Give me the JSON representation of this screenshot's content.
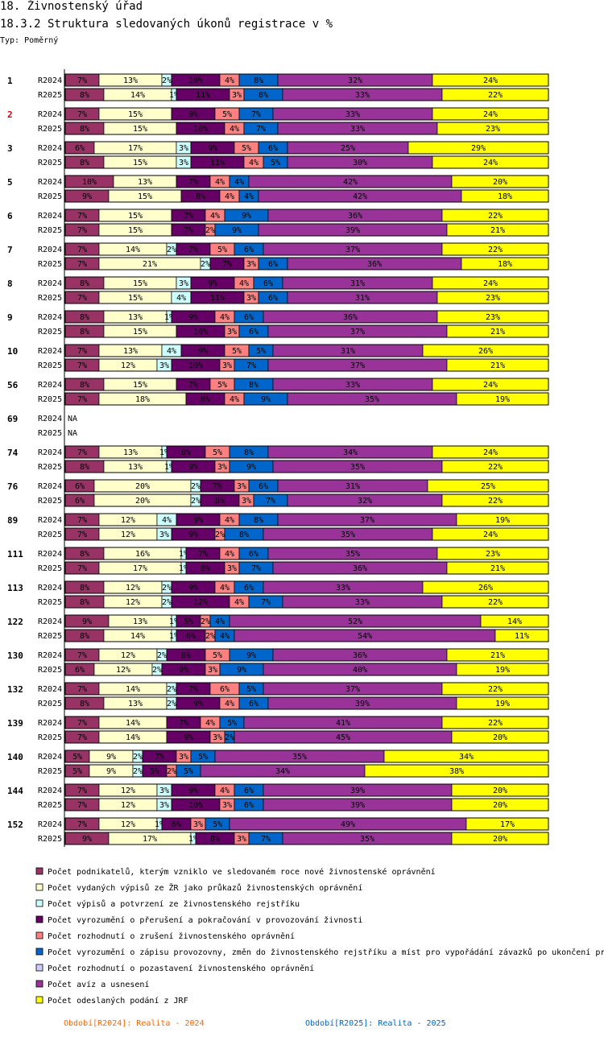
{
  "header": {
    "title": "18. Živnostenský úřad",
    "subtitle": "18.3.2 Struktura sledovaných úkonů registrace v %",
    "type_label": "Typ: Poměrný"
  },
  "chart_data": {
    "type": "bar",
    "orientation": "horizontal-stacked-percent",
    "title": "18.3.2 Struktura sledovaných úkonů registrace v %",
    "legend_position": "bottom",
    "colors": [
      "#993366",
      "#ffffcc",
      "#ccffff",
      "#660066",
      "#ff8080",
      "#0066cc",
      "#ccccff",
      "#993399",
      "#ffff00"
    ],
    "series": [
      {
        "name": "Počet podnikatelů, kterým vzniklo ve sledovaném roce nové živnostenské oprávnění"
      },
      {
        "name": "Počet vydaných výpisů ze ŽR jako průkazů živnostenských oprávnění"
      },
      {
        "name": "Počet výpisů a potvrzení ze živnostenského rejstříku"
      },
      {
        "name": "Počet vyrozumění o přerušení a pokračování v provozování živnosti"
      },
      {
        "name": "Počet rozhodnutí o zrušení živnostenského oprávnění"
      },
      {
        "name": "Počet vyrozumění o zápisu provozovny, změn do živnostenského rejstříku a míst pro vypořádání závazků po ukončení pr"
      },
      {
        "name": "Počet rozhodnutí o pozastavení živnostenského oprávnění"
      },
      {
        "name": "Počet avíz a usnesení"
      },
      {
        "name": "Počet odeslaných podání z JRF"
      }
    ],
    "groups": [
      {
        "label": "1",
        "highlight": false,
        "rows": [
          {
            "period": "R2024",
            "values": [
              7,
              13,
              2,
              10,
              4,
              8,
              0,
              32,
              24
            ]
          },
          {
            "period": "R2025",
            "values": [
              8,
              14,
              1,
              11,
              3,
              8,
              0,
              33,
              22
            ]
          }
        ]
      },
      {
        "label": "2",
        "highlight": true,
        "rows": [
          {
            "period": "R2024",
            "values": [
              7,
              15,
              0,
              9,
              5,
              7,
              0,
              33,
              24
            ]
          },
          {
            "period": "R2025",
            "values": [
              8,
              15,
              0,
              10,
              4,
              7,
              0,
              33,
              23
            ]
          }
        ]
      },
      {
        "label": "3",
        "highlight": false,
        "rows": [
          {
            "period": "R2024",
            "values": [
              6,
              17,
              3,
              9,
              5,
              6,
              0,
              25,
              29
            ]
          },
          {
            "period": "R2025",
            "values": [
              8,
              15,
              3,
              11,
              4,
              5,
              0,
              30,
              24
            ]
          }
        ]
      },
      {
        "label": "5",
        "highlight": false,
        "rows": [
          {
            "period": "R2024",
            "values": [
              10,
              13,
              0,
              7,
              4,
              4,
              0,
              42,
              20
            ]
          },
          {
            "period": "R2025",
            "values": [
              9,
              15,
              0,
              8,
              4,
              4,
              0,
              42,
              18
            ]
          }
        ]
      },
      {
        "label": "6",
        "highlight": false,
        "rows": [
          {
            "period": "R2024",
            "values": [
              7,
              15,
              0,
              7,
              4,
              9,
              0,
              36,
              22
            ]
          },
          {
            "period": "R2025",
            "values": [
              7,
              15,
              0,
              7,
              2,
              9,
              0,
              39,
              21
            ]
          }
        ]
      },
      {
        "label": "7",
        "highlight": false,
        "rows": [
          {
            "period": "R2024",
            "values": [
              7,
              14,
              2,
              7,
              5,
              6,
              0,
              37,
              22
            ]
          },
          {
            "period": "R2025",
            "values": [
              7,
              21,
              2,
              7,
              3,
              6,
              0,
              36,
              18
            ]
          }
        ]
      },
      {
        "label": "8",
        "highlight": false,
        "rows": [
          {
            "period": "R2024",
            "values": [
              8,
              15,
              3,
              9,
              4,
              6,
              0,
              31,
              24
            ]
          },
          {
            "period": "R2025",
            "values": [
              7,
              15,
              4,
              11,
              3,
              6,
              0,
              31,
              23
            ]
          }
        ]
      },
      {
        "label": "9",
        "highlight": false,
        "rows": [
          {
            "period": "R2024",
            "values": [
              8,
              13,
              1,
              9,
              4,
              6,
              0,
              36,
              23
            ]
          },
          {
            "period": "R2025",
            "values": [
              8,
              15,
              0,
              10,
              3,
              6,
              0,
              37,
              21
            ]
          }
        ]
      },
      {
        "label": "10",
        "highlight": false,
        "rows": [
          {
            "period": "R2024",
            "values": [
              7,
              13,
              4,
              9,
              5,
              5,
              0,
              31,
              26
            ]
          },
          {
            "period": "R2025",
            "values": [
              7,
              12,
              3,
              10,
              3,
              7,
              0,
              37,
              21
            ]
          }
        ]
      },
      {
        "label": "56",
        "highlight": false,
        "rows": [
          {
            "period": "R2024",
            "values": [
              8,
              15,
              0,
              7,
              5,
              8,
              0,
              33,
              24
            ]
          },
          {
            "period": "R2025",
            "values": [
              7,
              18,
              0,
              8,
              4,
              9,
              0,
              35,
              19
            ]
          }
        ]
      },
      {
        "label": "69",
        "highlight": false,
        "rows": [
          {
            "period": "R2024",
            "values": null,
            "na_text": "NA"
          },
          {
            "period": "R2025",
            "values": null,
            "na_text": "NA"
          }
        ]
      },
      {
        "label": "74",
        "highlight": false,
        "rows": [
          {
            "period": "R2024",
            "values": [
              7,
              13,
              1,
              8,
              5,
              8,
              0,
              34,
              24
            ]
          },
          {
            "period": "R2025",
            "values": [
              8,
              13,
              1,
              9,
              3,
              9,
              0,
              35,
              22
            ]
          }
        ]
      },
      {
        "label": "76",
        "highlight": false,
        "rows": [
          {
            "period": "R2024",
            "values": [
              6,
              20,
              2,
              7,
              3,
              6,
              0,
              31,
              25
            ]
          },
          {
            "period": "R2025",
            "values": [
              6,
              20,
              2,
              8,
              3,
              7,
              0,
              32,
              22
            ]
          }
        ]
      },
      {
        "label": "89",
        "highlight": false,
        "rows": [
          {
            "period": "R2024",
            "values": [
              7,
              12,
              4,
              9,
              4,
              8,
              0,
              37,
              19
            ]
          },
          {
            "period": "R2025",
            "values": [
              7,
              12,
              3,
              9,
              2,
              8,
              0,
              35,
              24
            ]
          }
        ]
      },
      {
        "label": "111",
        "highlight": false,
        "rows": [
          {
            "period": "R2024",
            "values": [
              8,
              16,
              1,
              7,
              4,
              6,
              0,
              35,
              23
            ]
          },
          {
            "period": "R2025",
            "values": [
              7,
              17,
              1,
              8,
              3,
              7,
              0,
              36,
              21
            ]
          }
        ]
      },
      {
        "label": "113",
        "highlight": false,
        "rows": [
          {
            "period": "R2024",
            "values": [
              8,
              12,
              2,
              9,
              4,
              6,
              0,
              33,
              26
            ]
          },
          {
            "period": "R2025",
            "values": [
              8,
              12,
              2,
              12,
              4,
              7,
              0,
              33,
              22
            ]
          }
        ]
      },
      {
        "label": "122",
        "highlight": false,
        "rows": [
          {
            "period": "R2024",
            "values": [
              9,
              13,
              1,
              5,
              2,
              4,
              0,
              52,
              14
            ]
          },
          {
            "period": "R2025",
            "values": [
              8,
              14,
              1,
              6,
              2,
              4,
              0,
              54,
              11
            ]
          }
        ]
      },
      {
        "label": "130",
        "highlight": false,
        "rows": [
          {
            "period": "R2024",
            "values": [
              7,
              12,
              2,
              8,
              5,
              9,
              0,
              36,
              21
            ]
          },
          {
            "period": "R2025",
            "values": [
              6,
              12,
              2,
              9,
              3,
              9,
              0,
              40,
              19
            ]
          }
        ]
      },
      {
        "label": "132",
        "highlight": false,
        "rows": [
          {
            "period": "R2024",
            "values": [
              7,
              14,
              2,
              7,
              6,
              5,
              0,
              37,
              22
            ]
          },
          {
            "period": "R2025",
            "values": [
              8,
              13,
              2,
              9,
              4,
              6,
              0,
              39,
              19
            ]
          }
        ]
      },
      {
        "label": "139",
        "highlight": false,
        "rows": [
          {
            "period": "R2024",
            "values": [
              7,
              14,
              0,
              7,
              4,
              5,
              0,
              41,
              22
            ]
          },
          {
            "period": "R2025",
            "values": [
              7,
              14,
              0,
              9,
              3,
              2,
              0,
              45,
              20
            ]
          }
        ]
      },
      {
        "label": "140",
        "highlight": false,
        "rows": [
          {
            "period": "R2024",
            "values": [
              5,
              9,
              2,
              7,
              3,
              5,
              0,
              35,
              34
            ]
          },
          {
            "period": "R2025",
            "values": [
              5,
              9,
              2,
              5,
              2,
              5,
              0,
              34,
              38
            ]
          }
        ]
      },
      {
        "label": "144",
        "highlight": false,
        "rows": [
          {
            "period": "R2024",
            "values": [
              7,
              12,
              3,
              9,
              4,
              6,
              0,
              39,
              20
            ]
          },
          {
            "period": "R2025",
            "values": [
              7,
              12,
              3,
              10,
              3,
              6,
              0,
              39,
              20
            ]
          }
        ]
      },
      {
        "label": "152",
        "highlight": false,
        "rows": [
          {
            "period": "R2024",
            "values": [
              7,
              12,
              1,
              6,
              3,
              5,
              0,
              49,
              17
            ]
          },
          {
            "period": "R2025",
            "values": [
              9,
              17,
              1,
              8,
              3,
              7,
              0,
              35,
              20
            ]
          }
        ]
      }
    ],
    "periods": [
      {
        "label": "Období[R2024]: Realita - 2024",
        "color": "#ff6600"
      },
      {
        "label": "Období[R2025]: Realita - 2025",
        "color": "#0066cc"
      }
    ]
  }
}
